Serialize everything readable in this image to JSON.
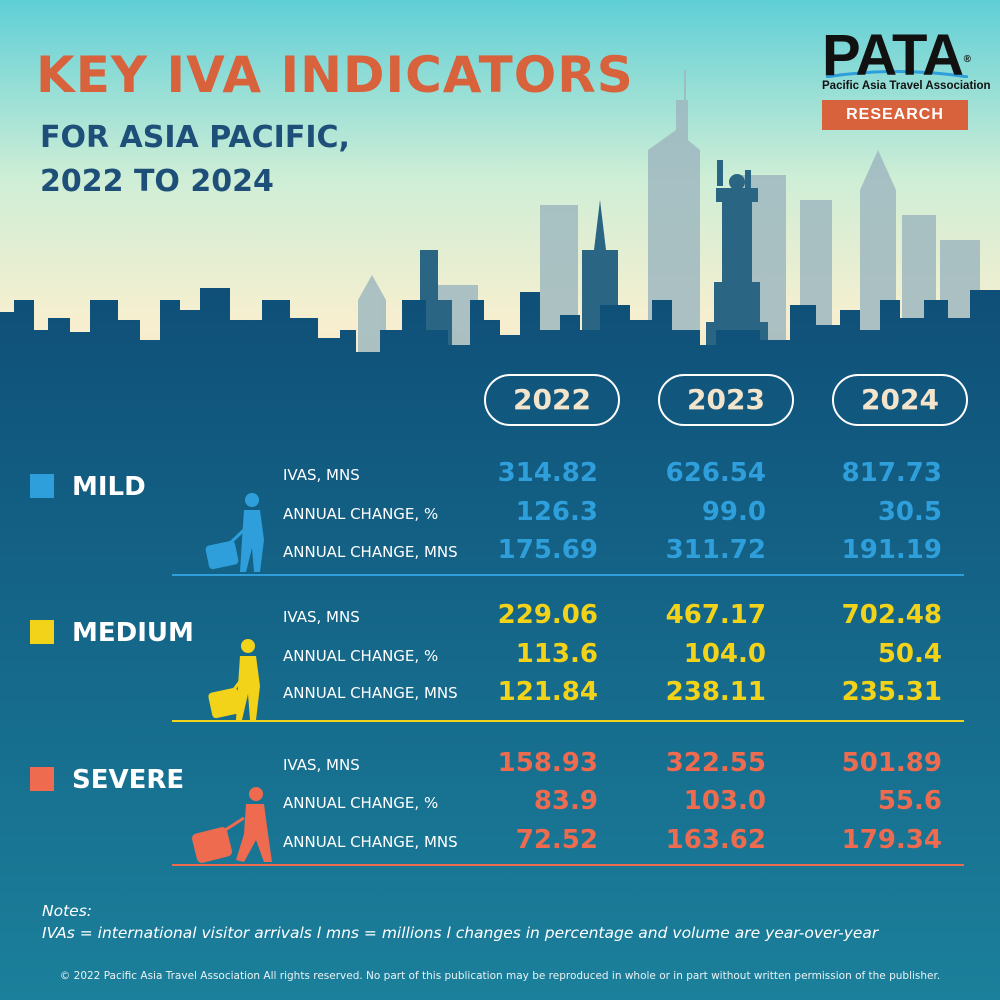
{
  "header": {
    "title": "KEY IVA INDICATORS",
    "subtitle_line1": "FOR ASIA PACIFIC,",
    "subtitle_line2": "2022 TO 2024"
  },
  "logo": {
    "wordmark": "PATA",
    "registered": "®",
    "organization": "Pacific Asia Travel Association",
    "badge": "RESEARCH"
  },
  "years": [
    "2022",
    "2023",
    "2024"
  ],
  "colors": {
    "mild": "#2f9fdc",
    "medium": "#f3d31a",
    "severe": "#ee6b4f",
    "title": "#d8623b",
    "subtitle": "#1e4f78"
  },
  "scenarios": [
    {
      "name": "MILD",
      "rows": [
        {
          "label": "IVAS, MNS",
          "values": [
            "314.82",
            "626.54",
            "817.73"
          ]
        },
        {
          "label": "ANNUAL CHANGE, %",
          "values": [
            "126.3",
            "99.0",
            "30.5"
          ]
        },
        {
          "label": "ANNUAL CHANGE, MNS",
          "values": [
            "175.69",
            "311.72",
            "191.19"
          ]
        }
      ]
    },
    {
      "name": "MEDIUM",
      "rows": [
        {
          "label": "IVAS, MNS",
          "values": [
            "229.06",
            "467.17",
            "702.48"
          ]
        },
        {
          "label": "ANNUAL CHANGE, %",
          "values": [
            "113.6",
            "104.0",
            "50.4"
          ]
        },
        {
          "label": "ANNUAL CHANGE, MNS",
          "values": [
            "121.84",
            "238.11",
            "235.31"
          ]
        }
      ]
    },
    {
      "name": "SEVERE",
      "rows": [
        {
          "label": "IVAS, MNS",
          "values": [
            "158.93",
            "322.55",
            "501.89"
          ]
        },
        {
          "label": "ANNUAL CHANGE, %",
          "values": [
            "83.9",
            "103.0",
            "55.6"
          ]
        },
        {
          "label": "ANNUAL CHANGE, MNS",
          "values": [
            "72.52",
            "163.62",
            "179.34"
          ]
        }
      ]
    }
  ],
  "notes": {
    "heading": "Notes:",
    "text": "IVAs = international visitor arrivals l mns = millions l changes in percentage and volume are year-over-year"
  },
  "footer": "© 2022 Pacific Asia Travel Association All rights reserved. No part of this publication may be reproduced in whole or in part without written permission of the publisher."
}
